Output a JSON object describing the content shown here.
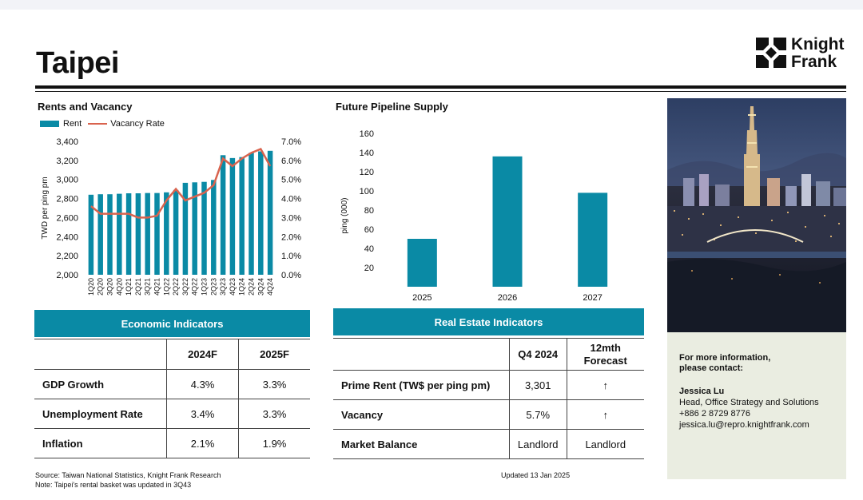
{
  "page": {
    "title": "Taipei"
  },
  "logo": {
    "line1": "Knight",
    "line2": "Frank"
  },
  "rents_chart": {
    "title": "Rents and Vacancy",
    "legend_rent": "Rent",
    "legend_vacancy": "Vacancy Rate",
    "ylabel": "TWD per ping pm"
  },
  "pipeline_chart": {
    "title": "Future Pipeline Supply",
    "ylabel": "ping (000)"
  },
  "chart_data": [
    {
      "type": "bar",
      "title": "Rents and Vacancy",
      "ylabel": "TWD per ping pm",
      "ylim": [
        2000,
        3400
      ],
      "y2lim": [
        0,
        7
      ],
      "yticks": [
        "2,000",
        "2,200",
        "2,400",
        "2,600",
        "2,800",
        "3,000",
        "3,200",
        "3,400"
      ],
      "y2ticks": [
        "0.0%",
        "1.0%",
        "2.0%",
        "3.0%",
        "4.0%",
        "5.0%",
        "6.0%",
        "7.0%"
      ],
      "categories": [
        "1Q20",
        "2Q20",
        "3Q20",
        "4Q20",
        "1Q21",
        "2Q21",
        "3Q21",
        "4Q21",
        "1Q22",
        "2Q22",
        "3Q22",
        "4Q22",
        "1Q23",
        "2Q23",
        "3Q23",
        "4Q23",
        "1Q24",
        "2Q24",
        "3Q24",
        "4Q24"
      ],
      "series": [
        {
          "name": "Rent",
          "type": "bar",
          "values": [
            2840,
            2845,
            2845,
            2850,
            2855,
            2855,
            2858,
            2858,
            2865,
            2890,
            2965,
            2970,
            2975,
            2995,
            3255,
            3225,
            3235,
            3280,
            3295,
            3301
          ]
        },
        {
          "name": "Vacancy Rate",
          "type": "line",
          "axis": "right",
          "values": [
            3.6,
            3.2,
            3.2,
            3.2,
            3.2,
            3.0,
            3.0,
            3.1,
            3.9,
            4.5,
            3.9,
            4.1,
            4.3,
            4.7,
            6.1,
            5.7,
            6.1,
            6.4,
            6.6,
            5.7
          ]
        }
      ]
    },
    {
      "type": "bar",
      "title": "Future Pipeline Supply",
      "ylabel": "ping (000)",
      "ylim": [
        0,
        160
      ],
      "yticks": [
        "20",
        "40",
        "60",
        "80",
        "100",
        "120",
        "140",
        "160"
      ],
      "categories": [
        "2025",
        "2026",
        "2027"
      ],
      "values": [
        50,
        136,
        98
      ]
    }
  ],
  "economic": {
    "banner": "Economic Indicators",
    "headers": [
      "",
      "2024F",
      "2025F"
    ],
    "rows": [
      {
        "label": "GDP Growth",
        "v1": "4.3%",
        "v2": "3.3%"
      },
      {
        "label": "Unemployment Rate",
        "v1": "3.4%",
        "v2": "3.3%"
      },
      {
        "label": "Inflation",
        "v1": "2.1%",
        "v2": "1.9%"
      }
    ]
  },
  "realestate": {
    "banner": "Real Estate Indicators",
    "headers": [
      "",
      "Q4 2024",
      "12mth Forecast"
    ],
    "rows": [
      {
        "label": "Prime Rent (TW$ per ping pm)",
        "v1": "3,301",
        "v2": "↑"
      },
      {
        "label": "Vacancy",
        "v1": "5.7%",
        "v2": "↑"
      },
      {
        "label": "Market Balance",
        "v1": "Landlord",
        "v2": "Landlord"
      }
    ]
  },
  "contact": {
    "intro": "For more information, please contact:",
    "name": "Jessica Lu",
    "role": "Head, Office Strategy and Solutions",
    "phone": "+886 2 8729 8776",
    "email": "jessica.lu@repro.knightfrank.com"
  },
  "footer": {
    "source": "Source: Taiwan National Statistics, Knight Frank Research",
    "note": "Note: Taipei's rental basket was updated in 3Q43",
    "updated": "Updated 13 Jan 2025"
  },
  "colors": {
    "bar": "#0a8aa5",
    "line": "#d9634e",
    "banner": "#0a8aa5",
    "contact_bg": "#eaede1"
  }
}
